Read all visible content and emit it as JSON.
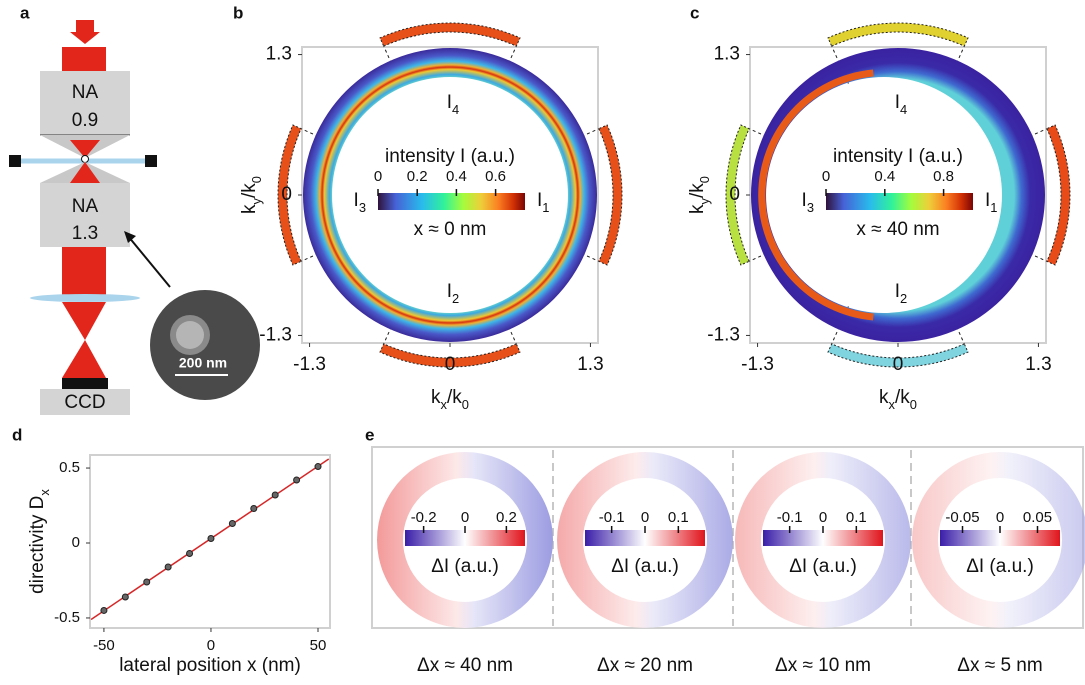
{
  "panel_labels": [
    "a",
    "b",
    "c",
    "d",
    "e"
  ],
  "setup": {
    "objective_top": [
      "NA",
      "0.9"
    ],
    "objective_bottom": [
      "NA",
      "1.3"
    ],
    "scale_bar": "200 nm",
    "detector": "CCD"
  },
  "fourier": [
    {
      "ylabel": [
        "k",
        "y",
        "/k",
        "0"
      ],
      "xlabel": [
        "k",
        "x",
        "/k",
        "0"
      ],
      "ticks": [
        -1.3,
        0,
        1.3
      ],
      "lim": [
        -1.37,
        1.37
      ],
      "colorbar": {
        "title": "intensity I (a.u.)",
        "lim": [
          0,
          0.75
        ],
        "ticks": [
          0,
          0.2,
          0.4,
          0.6
        ],
        "left": [
          "I",
          "3"
        ],
        "right": [
          "I",
          "1"
        ]
      },
      "position": "x ≈ 0 nm",
      "top": [
        "I",
        "4"
      ],
      "bottom": [
        "I",
        "2"
      ]
    },
    {
      "ylabel": [
        "k",
        "y",
        "/k",
        "0"
      ],
      "xlabel": [
        "k",
        "x",
        "/k",
        "0"
      ],
      "ticks": [
        -1.3,
        0,
        1.3
      ],
      "lim": [
        -1.37,
        1.37
      ],
      "colorbar": {
        "title": "intensity I (a.u.)",
        "lim": [
          0,
          1.0
        ],
        "ticks": [
          0,
          0.4,
          0.8
        ],
        "left": [
          "I",
          "3"
        ],
        "right": [
          "I",
          "1"
        ]
      },
      "position": "x ≈ 40 nm",
      "top": [
        "I",
        "4"
      ],
      "bottom": [
        "I",
        "2"
      ]
    }
  ],
  "chart_data": {
    "type": "scatter",
    "xlabel": "lateral position x (nm)",
    "ylabel": [
      "directivity D",
      "x"
    ],
    "xlim": [
      -56.5,
      55.6
    ],
    "ylim": [
      -0.567,
      0.587
    ],
    "xticks": [
      -50,
      0,
      50
    ],
    "yticks": [
      -0.5,
      0,
      0.5
    ],
    "series": [
      {
        "color": "#d62728",
        "style": "line",
        "x": [
          -56,
          55
        ],
        "values": [
          -0.51,
          0.56
        ]
      },
      {
        "color": "#222222",
        "style": "markers",
        "x": [
          -50,
          -40,
          -30,
          -20,
          -10,
          0,
          10,
          20,
          30,
          40,
          50
        ],
        "values": [
          -0.45,
          -0.36,
          -0.26,
          -0.16,
          -0.07,
          0.03,
          0.13,
          0.23,
          0.32,
          0.42,
          0.51
        ]
      }
    ]
  },
  "difference": [
    {
      "colorbar": {
        "lim": [
          -0.29,
          0.29
        ],
        "ticks": [
          -0.2,
          0,
          0.2
        ],
        "label": "ΔI (a.u.)"
      },
      "shift": "Δx ≈ 40 nm"
    },
    {
      "colorbar": {
        "lim": [
          -0.18,
          0.18
        ],
        "ticks": [
          -0.1,
          0,
          0.1
        ],
        "label": "ΔI (a.u.)"
      },
      "shift": "Δx ≈ 20 nm"
    },
    {
      "colorbar": {
        "lim": [
          -0.18,
          0.18
        ],
        "ticks": [
          -0.1,
          0,
          0.1
        ],
        "label": "ΔI (a.u.)"
      },
      "shift": "Δx ≈ 10 nm"
    },
    {
      "colorbar": {
        "lim": [
          -0.08,
          0.08
        ],
        "ticks": [
          -0.05,
          0,
          0.05
        ],
        "label": "ΔI (a.u.)"
      },
      "shift": "Δx ≈ 5 nm"
    }
  ]
}
